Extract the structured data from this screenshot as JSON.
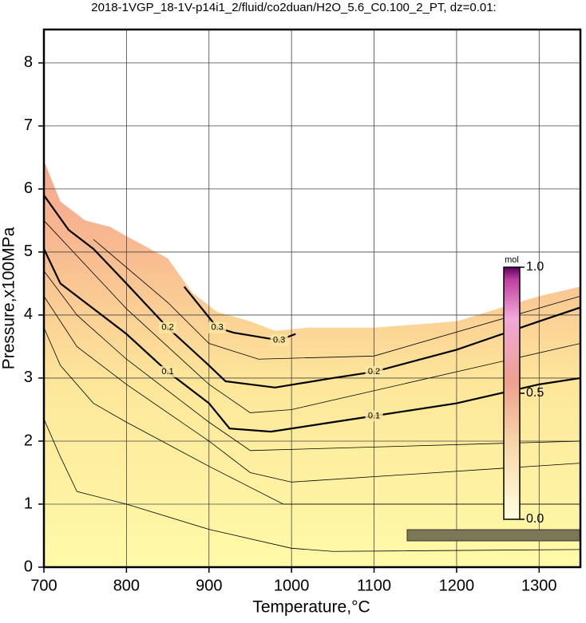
{
  "chart_data": {
    "type": "contour",
    "title": "2018-1VGP_18-1V-p14i1_2/fluid/co2duan/H2O_5.6_C0.100_2_PT, dz=0.01:",
    "x_label": "Temperature,°C",
    "y_label": "Pressure,x100MPa",
    "xlim": [
      700,
      1350
    ],
    "ylim": [
      0,
      8.53
    ],
    "xticks": [
      700,
      800,
      900,
      1000,
      1100,
      1200,
      1300
    ],
    "yticks": [
      0,
      1,
      2,
      3,
      4,
      5,
      6,
      7,
      8
    ],
    "grid": true,
    "boundary": {
      "x": [
        700,
        720,
        750,
        780,
        800,
        850,
        880,
        910,
        950,
        980,
        1020,
        1100,
        1200,
        1250,
        1300,
        1350
      ],
      "y": [
        6.45,
        5.8,
        5.5,
        5.4,
        5.25,
        4.9,
        4.35,
        4.05,
        3.9,
        3.75,
        3.8,
        3.8,
        3.9,
        4.1,
        4.3,
        4.45
      ]
    },
    "contours": [
      {
        "level": 0.01,
        "x": [
          700,
          720,
          740,
          800,
          900,
          1000,
          1050,
          1350
        ],
        "y": [
          2.35,
          1.75,
          1.2,
          1.0,
          0.6,
          0.3,
          0.25,
          0.28
        ]
      },
      {
        "level": 0.02,
        "x": [
          700,
          720,
          760,
          800,
          900,
          990,
          1100,
          1350
        ],
        "y": [
          3.8,
          3.2,
          2.6,
          2.3,
          1.6,
          1.0,
          1.0,
          1.0
        ]
      },
      {
        "level": 0.04,
        "x": [
          700,
          740,
          800,
          900,
          950,
          1000,
          1350
        ],
        "y": [
          4.3,
          3.5,
          2.9,
          2.0,
          1.5,
          1.35,
          1.65
        ]
      },
      {
        "level": 0.06,
        "x": [
          700,
          740,
          800,
          900,
          950,
          1350
        ],
        "y": [
          4.7,
          4.0,
          3.3,
          2.3,
          1.85,
          2.0
        ]
      },
      {
        "level": 0.1,
        "x": [
          700,
          720,
          760,
          800,
          850,
          900,
          925,
          975,
          1050,
          1100,
          1200,
          1300,
          1350
        ],
        "y": [
          5.05,
          4.5,
          4.1,
          3.7,
          3.1,
          2.6,
          2.2,
          2.15,
          2.3,
          2.4,
          2.6,
          2.9,
          3.0
        ]
      },
      {
        "level": 0.15,
        "x": [
          700,
          800,
          900,
          950,
          1000,
          1350
        ],
        "y": [
          5.5,
          4.1,
          2.9,
          2.45,
          2.5,
          3.55
        ]
      },
      {
        "level": 0.2,
        "x": [
          700,
          730,
          760,
          800,
          850,
          900,
          920,
          980,
          1050,
          1100,
          1200,
          1300,
          1350
        ],
        "y": [
          5.9,
          5.35,
          5.05,
          4.5,
          3.8,
          3.2,
          2.95,
          2.85,
          3.0,
          3.1,
          3.45,
          3.9,
          4.12
        ]
      },
      {
        "level": 0.25,
        "x": [
          760,
          850,
          900,
          960,
          1100,
          1350
        ],
        "y": [
          5.2,
          4.2,
          3.55,
          3.3,
          3.35,
          4.3
        ]
      },
      {
        "level": 0.3,
        "x": [
          870,
          910,
          930,
          985,
          1005
        ],
        "y": [
          4.45,
          3.8,
          3.72,
          3.6,
          3.7
        ]
      }
    ],
    "colorbar": {
      "label": "mol",
      "lim": [
        0,
        1
      ],
      "ticks": [
        {
          "value": 0,
          "label": "0.0"
        },
        {
          "value": 0.5,
          "label": "0.5"
        },
        {
          "value": 1,
          "label": "1.0"
        }
      ]
    }
  }
}
